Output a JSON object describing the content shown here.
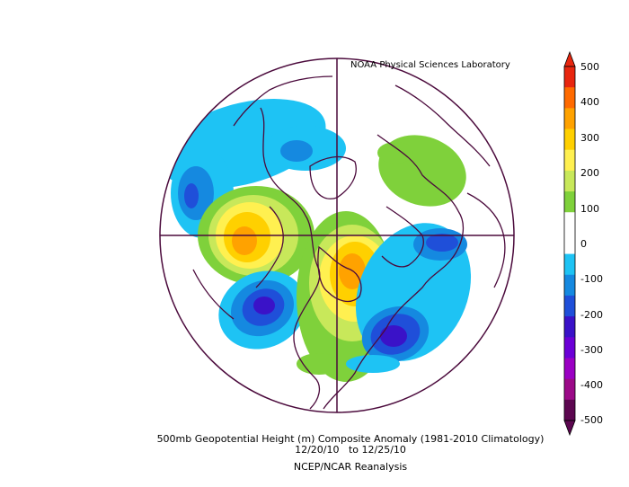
{
  "credit": "NOAA Physical Sciences Laboratory",
  "caption": {
    "line1": "500mb Geopotential Height (m) Composite Anomaly (1981-2010 Climatology)",
    "line2": "12/20/10   to 12/25/10",
    "line3": "NCEP/NCAR Reanalysis"
  },
  "colorbar": {
    "labels": [
      "500",
      "400",
      "300",
      "200",
      "100",
      "0",
      "-100",
      "-200",
      "-300",
      "-400",
      "-500"
    ],
    "colors": [
      "#e8260f",
      "#ff6a00",
      "#ffa200",
      "#ffd000",
      "#fff050",
      "#c8e85a",
      "#7fd13b",
      "#ffffff",
      "#ffffff",
      "#1ec3f4",
      "#1589e0",
      "#1f4fd9",
      "#3a12c8",
      "#6b00d6",
      "#9a00c3",
      "#9b0a88",
      "#5c0750"
    ]
  },
  "colors": {
    "map_outline": "#4b0a3c",
    "background": "#ffffff"
  }
}
